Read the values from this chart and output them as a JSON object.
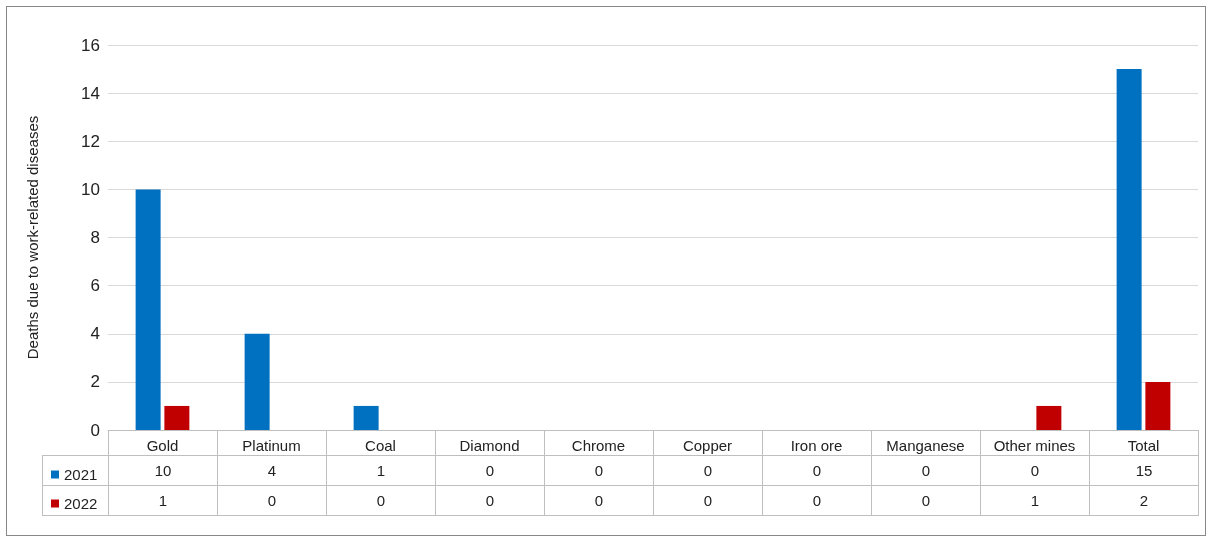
{
  "chart_data": {
    "type": "bar",
    "ylabel": "Deaths due to work-related diseases",
    "categories": [
      "Gold",
      "Platinum",
      "Coal",
      "Diamond",
      "Chrome",
      "Copper",
      "Iron ore",
      "Manganese",
      "Other mines",
      "Total"
    ],
    "series": [
      {
        "name": "2021",
        "color": "#0070c0",
        "values": [
          10,
          4,
          1,
          0,
          0,
          0,
          0,
          0,
          0,
          15
        ]
      },
      {
        "name": "2022",
        "color": "#c00000",
        "values": [
          1,
          0,
          0,
          0,
          0,
          0,
          0,
          0,
          1,
          2
        ]
      }
    ],
    "ylim": [
      0,
      16
    ],
    "yticks": [
      0,
      2,
      4,
      6,
      8,
      10,
      12,
      14,
      16
    ],
    "grid": "y",
    "legend": "bottom",
    "data_labels": true
  }
}
